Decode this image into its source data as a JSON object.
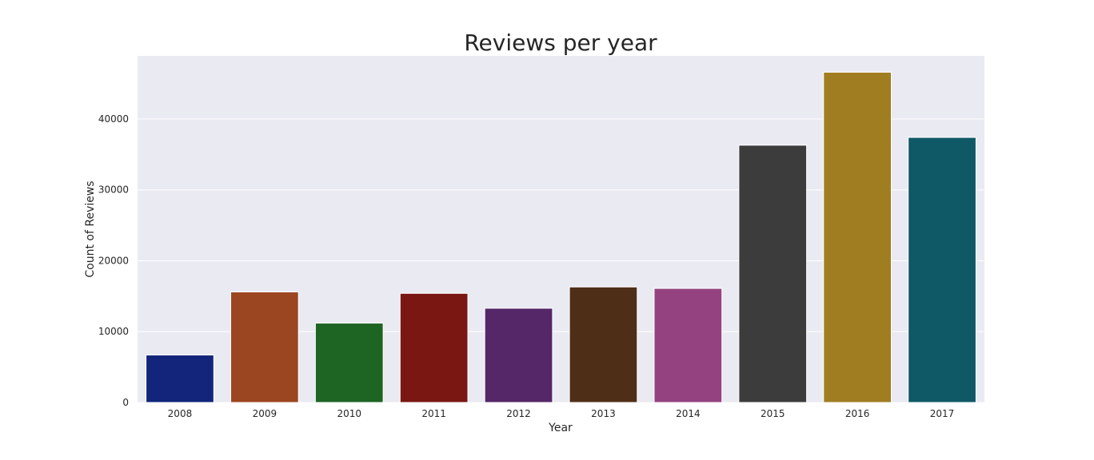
{
  "chart_data": {
    "type": "bar",
    "title": "Reviews per year",
    "xlabel": "Year",
    "ylabel": "Count of Reviews",
    "categories": [
      "2008",
      "2009",
      "2010",
      "2011",
      "2012",
      "2013",
      "2014",
      "2015",
      "2016",
      "2017"
    ],
    "values": [
      6700,
      15600,
      11200,
      15400,
      13300,
      16300,
      16100,
      36300,
      46600,
      37400
    ],
    "colors": [
      "#12257a",
      "#9b4620",
      "#1e6423",
      "#7a1713",
      "#552768",
      "#4f2e18",
      "#944380",
      "#3c3c3c",
      "#a17d22",
      "#0f5966"
    ],
    "ylim": [
      0,
      48900
    ],
    "yticks": [
      0,
      10000,
      20000,
      30000,
      40000
    ],
    "yticks_labels": [
      "0",
      "10000",
      "20000",
      "30000",
      "40000"
    ],
    "grid": true,
    "background": "#eaeaf2",
    "grid_color": "#ffffff"
  }
}
